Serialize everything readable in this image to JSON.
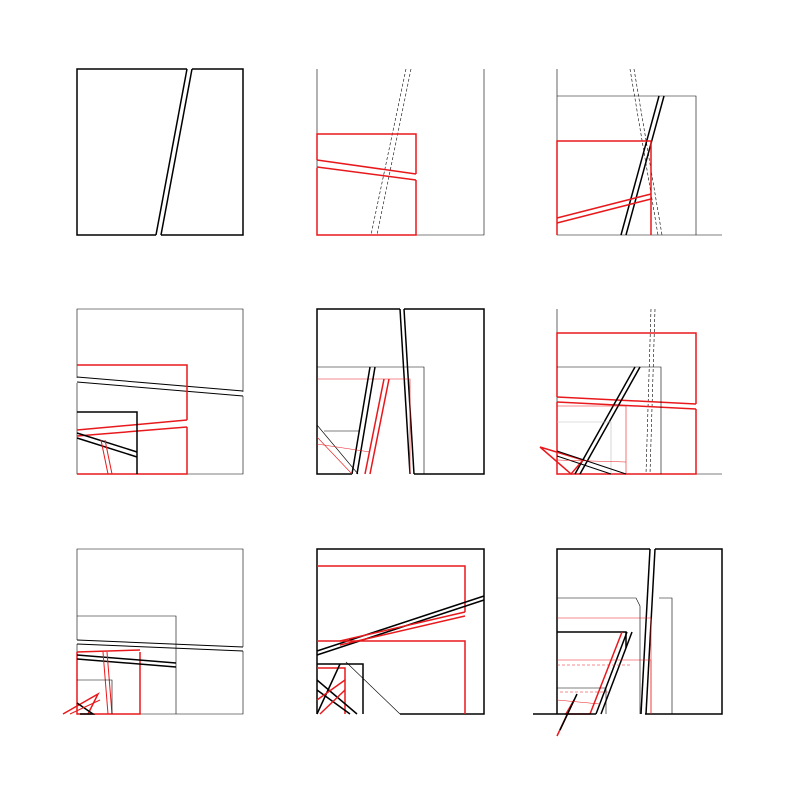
{
  "figure": {
    "description_grid": "3x3",
    "panels": [
      {
        "id": "panel-1",
        "colors": [
          "black"
        ]
      },
      {
        "id": "panel-2",
        "colors": [
          "black",
          "red"
        ]
      },
      {
        "id": "panel-3",
        "colors": [
          "black",
          "red"
        ]
      },
      {
        "id": "panel-4",
        "colors": [
          "black",
          "red"
        ]
      },
      {
        "id": "panel-5",
        "colors": [
          "black",
          "red"
        ]
      },
      {
        "id": "panel-6",
        "colors": [
          "black",
          "red",
          "gray"
        ]
      },
      {
        "id": "panel-7",
        "colors": [
          "black",
          "red"
        ]
      },
      {
        "id": "panel-8",
        "colors": [
          "black",
          "red"
        ]
      },
      {
        "id": "panel-9",
        "colors": [
          "black",
          "red"
        ]
      }
    ],
    "palette": {
      "primary": "#000000",
      "accent": "#e8191c",
      "muted": "#bdbdbd",
      "background": "#ffffff"
    }
  }
}
